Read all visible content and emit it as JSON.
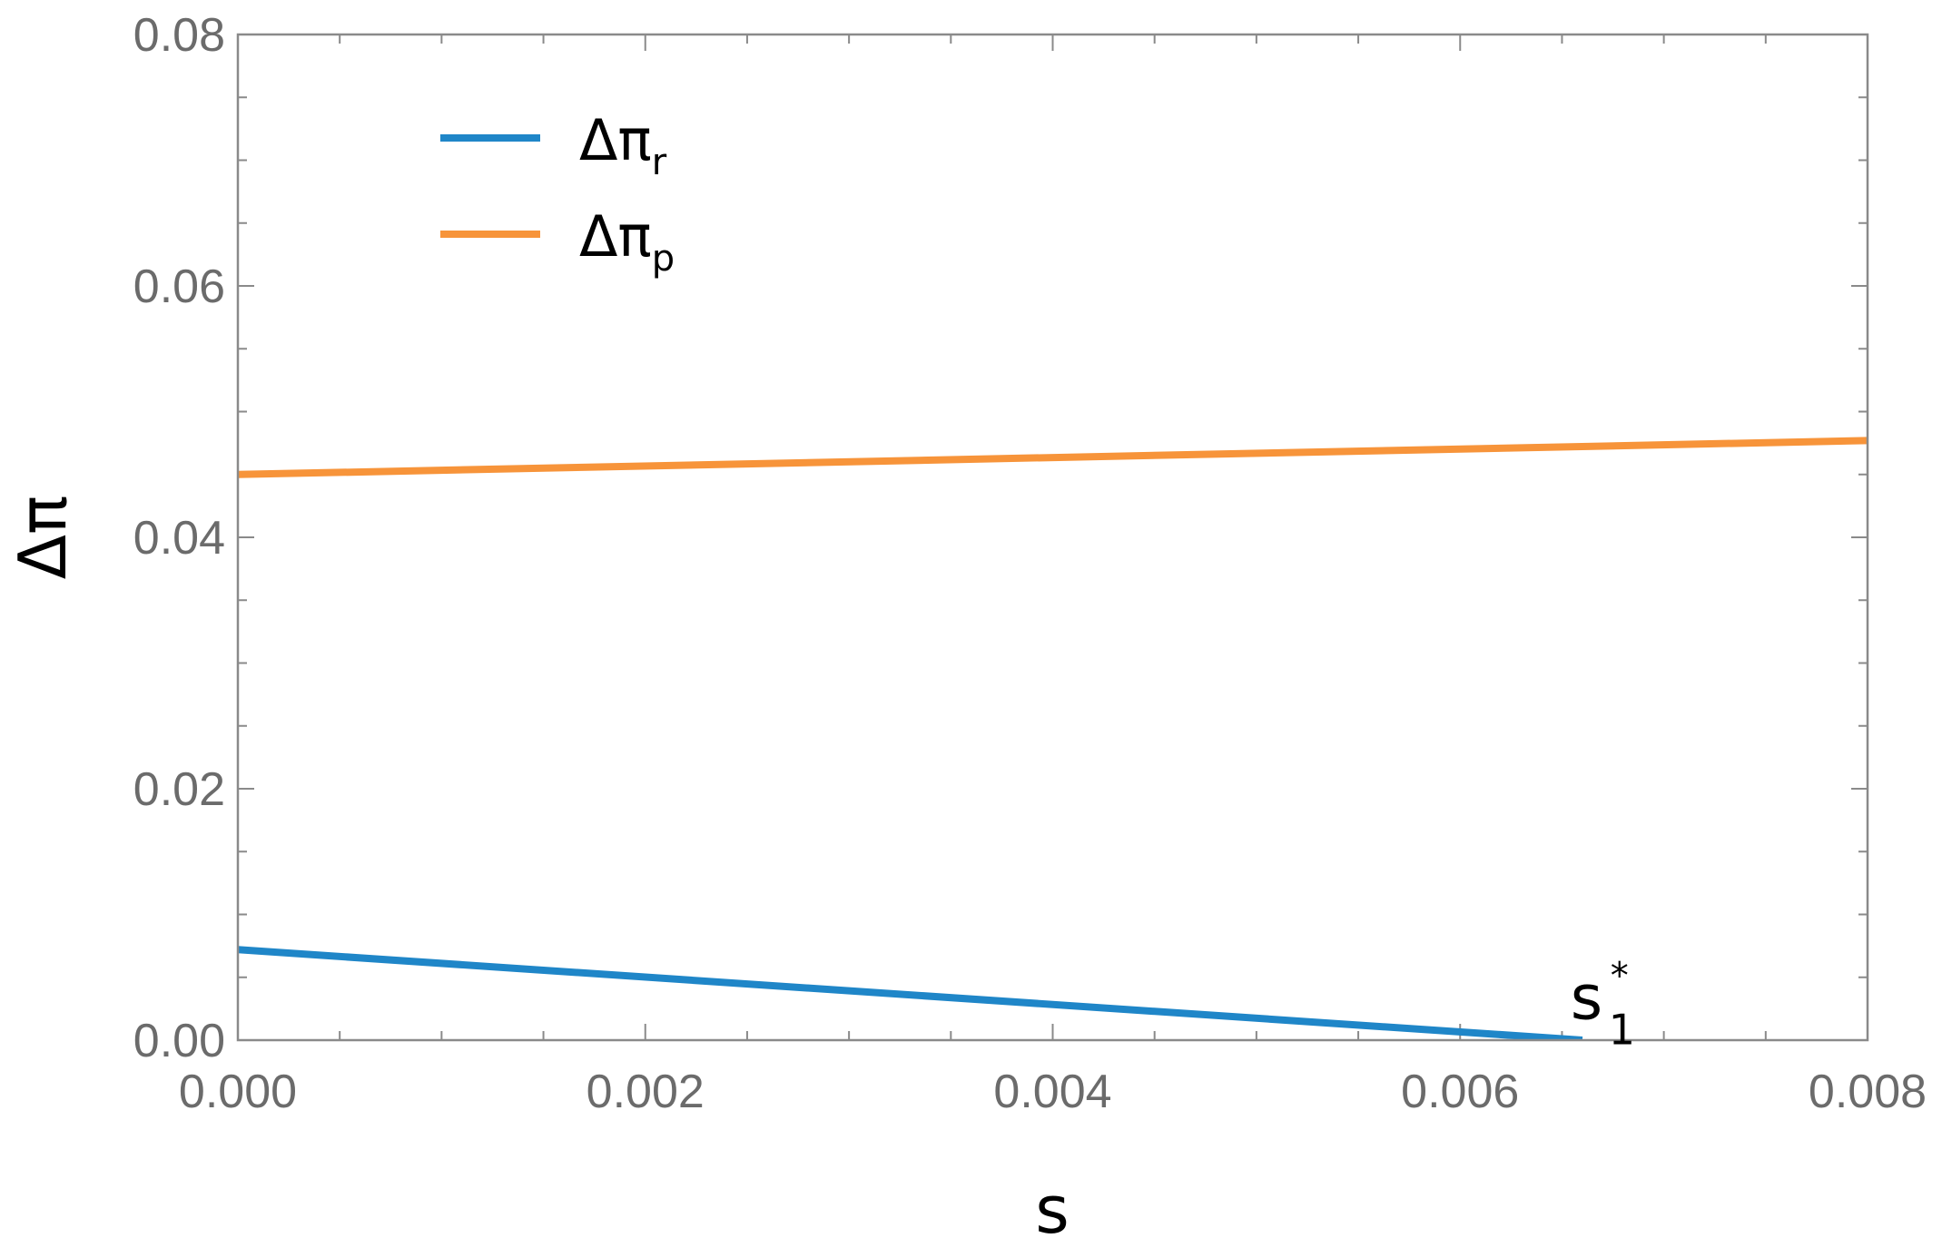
{
  "chart_data": {
    "type": "line",
    "xlabel": "s",
    "ylabel": "Δπ",
    "xlim": [
      0,
      0.008
    ],
    "ylim": [
      0,
      0.08
    ],
    "x_ticks": [
      "0.000",
      "0.002",
      "0.004",
      "0.006",
      "0.008"
    ],
    "y_ticks": [
      "0.00",
      "0.02",
      "0.04",
      "0.06",
      "0.08"
    ],
    "grid": false,
    "legend_position": "top-left",
    "series": [
      {
        "name": "Δπ",
        "subscript": "r",
        "color": "#1f86c8",
        "x": [
          0,
          0.0066
        ],
        "y": [
          0.0072,
          0
        ]
      },
      {
        "name": "Δπ",
        "subscript": "p",
        "color": "#f7943a",
        "x": [
          0,
          0.008
        ],
        "y": [
          0.045,
          0.0477
        ]
      }
    ],
    "annotations": [
      {
        "text": "s",
        "subscript": "1",
        "superscript": "*",
        "x": 0.0068,
        "y": 0.002
      }
    ]
  }
}
